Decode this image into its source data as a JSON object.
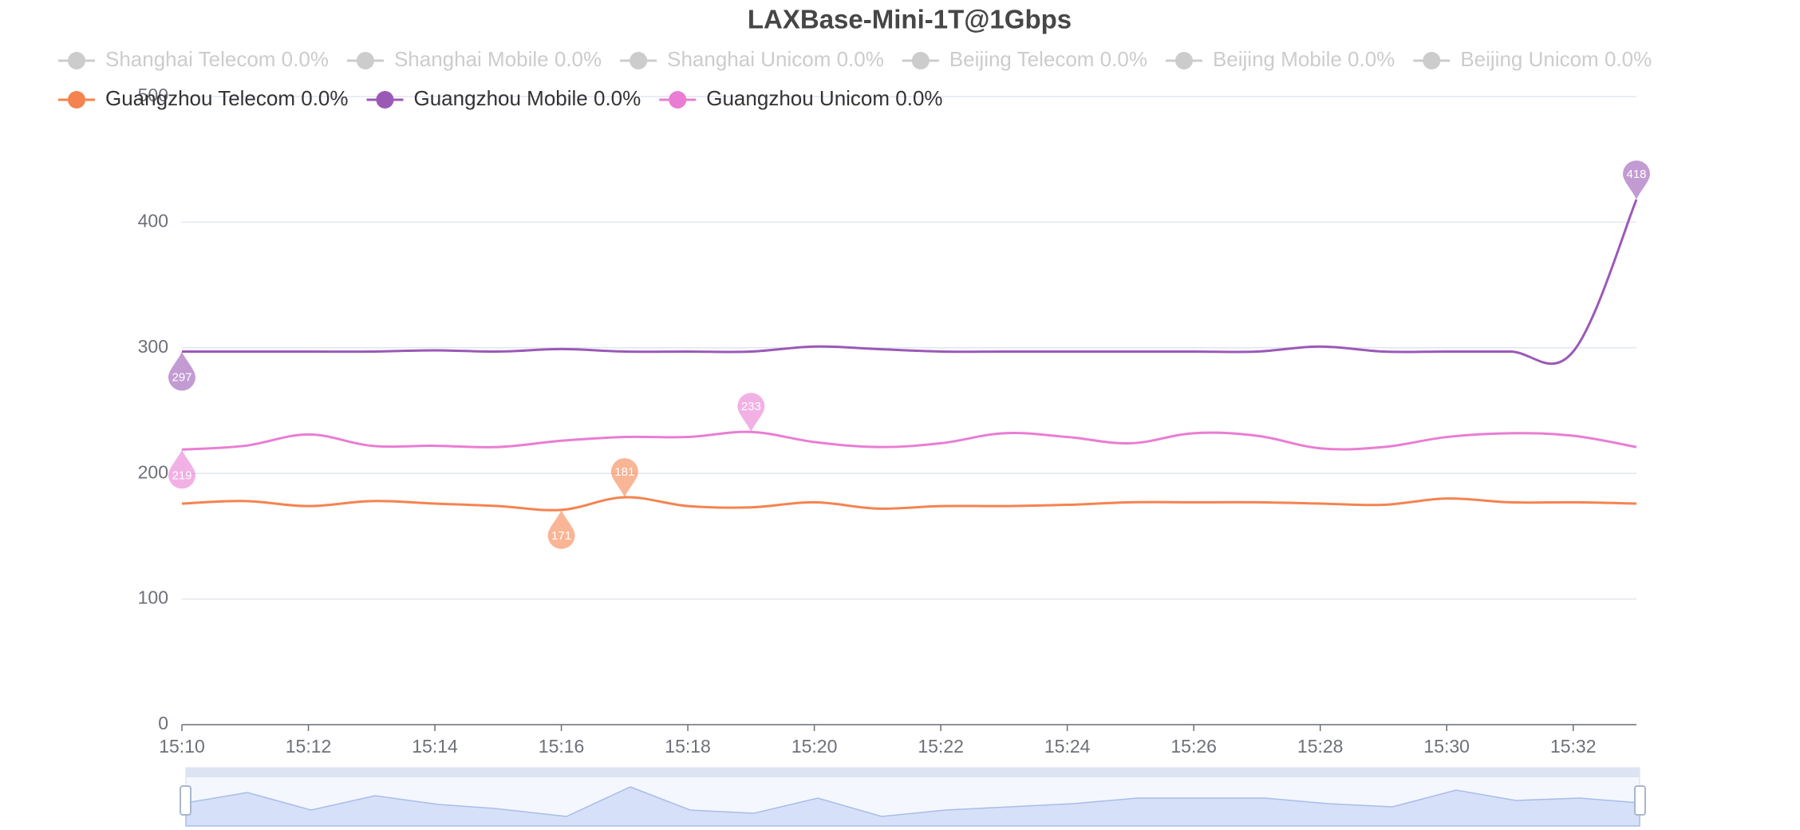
{
  "chart_data": {
    "type": "line",
    "title": "LAXBase-Mini-1T@1Gbps",
    "categories": [
      "15:10",
      null,
      "15:12",
      null,
      "15:14",
      null,
      "15:16",
      null,
      "15:18",
      null,
      "15:20",
      null,
      "15:22",
      null,
      "15:24",
      null,
      "15:26",
      null,
      "15:28",
      null,
      "15:30",
      null,
      "15:32",
      null
    ],
    "series": [
      {
        "name": "Shanghai Telecom 0.0%",
        "hidden": true
      },
      {
        "name": "Shanghai Mobile 0.0%",
        "hidden": true
      },
      {
        "name": "Shanghai Unicom 0.0%",
        "hidden": true
      },
      {
        "name": "Beijing Telecom 0.0%",
        "hidden": true
      },
      {
        "name": "Beijing Mobile 0.0%",
        "hidden": true
      },
      {
        "name": "Beijing Unicom 0.0%",
        "hidden": true
      },
      {
        "name": "Guangzhou Telecom 0.0%",
        "color": "#f5834f",
        "values": [
          176,
          178,
          174,
          178,
          176,
          174,
          171,
          181,
          174,
          173,
          177,
          172,
          174,
          174,
          175,
          177,
          177,
          177,
          176,
          175,
          180,
          177,
          177,
          176
        ]
      },
      {
        "name": "Guangzhou Mobile 0.0%",
        "color": "#9b59b6",
        "values": [
          297,
          297,
          297,
          297,
          298,
          297,
          299,
          297,
          297,
          297,
          301,
          299,
          297,
          297,
          297,
          297,
          297,
          297,
          301,
          297,
          297,
          297,
          297,
          418
        ]
      },
      {
        "name": "Guangzhou Unicom 0.0%",
        "color": "#e97dd3",
        "values": [
          219,
          222,
          231,
          222,
          222,
          221,
          226,
          229,
          229,
          233,
          225,
          221,
          224,
          232,
          229,
          224,
          232,
          230,
          220,
          221,
          229,
          232,
          230,
          221
        ]
      }
    ],
    "ylim": [
      0,
      500
    ],
    "yticks": [
      0,
      100,
      200,
      300,
      400,
      500
    ],
    "grid": true,
    "hidden_color": "#cccccc"
  }
}
